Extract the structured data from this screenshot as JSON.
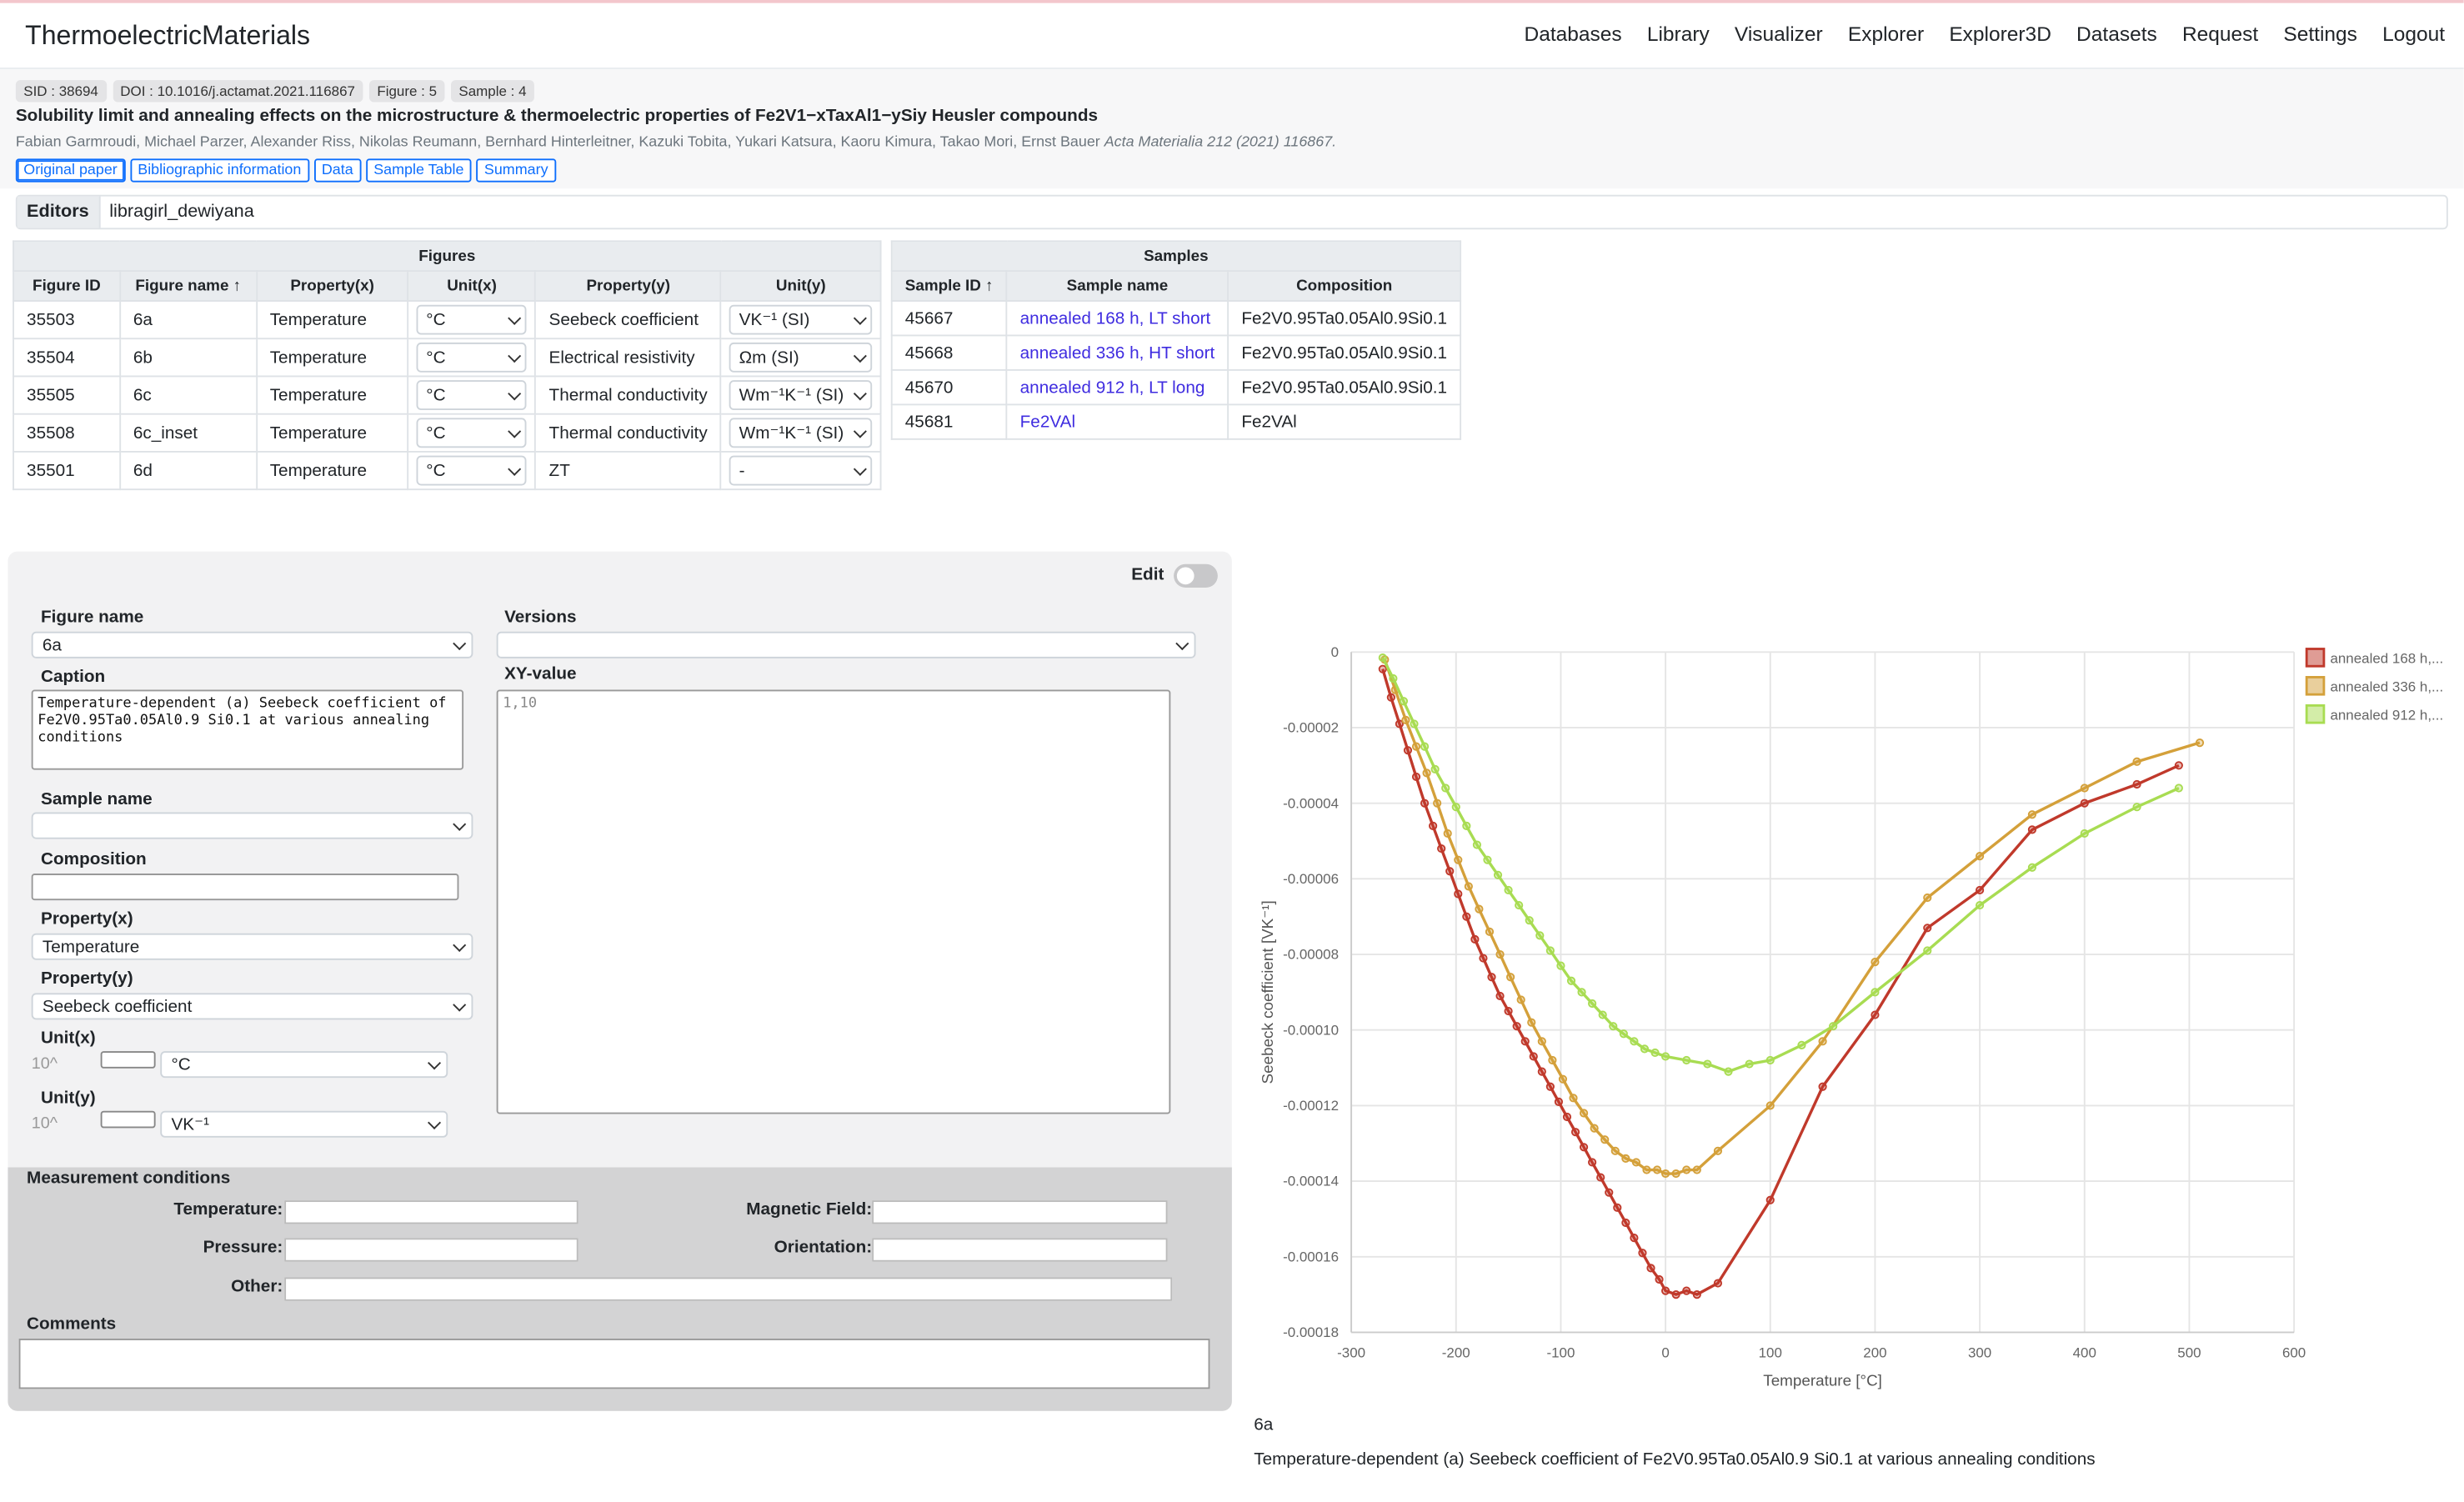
{
  "app": {
    "brand": "ThermoelectricMaterials"
  },
  "nav": [
    "Databases",
    "Library",
    "Visualizer",
    "Explorer",
    "Explorer3D",
    "Datasets",
    "Request",
    "Settings",
    "Logout"
  ],
  "paper": {
    "badges": [
      "SID : 38694",
      "DOI : 10.1016/j.actamat.2021.116867",
      "Figure : 5",
      "Sample : 4"
    ],
    "title": "Solubility limit and annealing effects on the microstructure & thermoelectric properties of Fe2V1−xTaxAl1−ySiy Heusler compounds",
    "authors": "Fabian Garmroudi, Michael Parzer, Alexander Riss, Nikolas Reumann, Bernhard Hinterleitner, Kazuki Tobita, Yukari Katsura, Kaoru Kimura, Takao Mori, Ernst Bauer",
    "journal": "Acta Materialia 212  (2021)  116867.",
    "tabs": [
      "Original paper",
      "Bibliographic information",
      "Data",
      "Sample Table",
      "Summary"
    ]
  },
  "editors": {
    "label": "Editors",
    "value": "libragirl_dewiyana"
  },
  "figures_table": {
    "title": "Figures",
    "headers": [
      "Figure ID",
      "Figure name ↑",
      "Property(x)",
      "Unit(x)",
      "Property(y)",
      "Unit(y)"
    ],
    "rows": [
      [
        "35503",
        "6a",
        "Temperature",
        "°C",
        "Seebeck coefficient",
        "VK⁻¹ (SI)"
      ],
      [
        "35504",
        "6b",
        "Temperature",
        "°C",
        "Electrical resistivity",
        "Ωm (SI)"
      ],
      [
        "35505",
        "6c",
        "Temperature",
        "°C",
        "Thermal conductivity",
        "Wm⁻¹K⁻¹ (SI)"
      ],
      [
        "35508",
        "6c_inset",
        "Temperature",
        "°C",
        "Thermal conductivity",
        "Wm⁻¹K⁻¹ (SI)"
      ],
      [
        "35501",
        "6d",
        "Temperature",
        "°C",
        "ZT",
        "-"
      ]
    ]
  },
  "samples_table": {
    "title": "Samples",
    "headers": [
      "Sample ID ↑",
      "Sample name",
      "Composition"
    ],
    "rows": [
      [
        "45667",
        "annealed 168 h, LT short",
        "Fe2V0.95Ta0.05Al0.9Si0.1"
      ],
      [
        "45668",
        "annealed 336 h, HT short",
        "Fe2V0.95Ta0.05Al0.9Si0.1"
      ],
      [
        "45670",
        "annealed 912 h, LT long",
        "Fe2V0.95Ta0.05Al0.9Si0.1"
      ],
      [
        "45681",
        "Fe2VAl",
        "Fe2VAl"
      ]
    ]
  },
  "editor": {
    "edit_label": "Edit",
    "figure_name_label": "Figure name",
    "figure_name_value": "6a",
    "versions_label": "Versions",
    "versions_value": "",
    "caption_label": "Caption",
    "caption_value": "Temperature-dependent (a) Seebeck coefficient of Fe2V0.95Ta0.05Al0.9 Si0.1 at various annealing conditions",
    "xy_label": "XY-value",
    "xy_placeholder": "1,10",
    "sample_name_label": "Sample name",
    "sample_name_value": "",
    "composition_label": "Composition",
    "property_x_label": "Property(x)",
    "property_x_value": "Temperature",
    "property_y_label": "Property(y)",
    "property_y_value": "Seebeck coefficient",
    "unit_x_label": "Unit(x)",
    "unit_x_value": "°C",
    "unit_y_label": "Unit(y)",
    "unit_y_value": "VK⁻¹",
    "pow_label": "10^"
  },
  "measurement": {
    "title": "Measurement conditions",
    "temperature": "Temperature:",
    "magnetic_field": "Magnetic Field:",
    "pressure": "Pressure:",
    "orientation": "Orientation:",
    "other": "Other:",
    "comments": "Comments"
  },
  "figure_caption": {
    "name": "6a",
    "text": "Temperature-dependent (a) Seebeck coefficient of Fe2V0.95Ta0.05Al0.9 Si0.1 at various annealing conditions"
  },
  "chart_data": {
    "type": "line",
    "xlabel": "Temperature [°C]",
    "ylabel": "Seebeck coefficient [VK⁻¹]",
    "xlim": [
      -300,
      600
    ],
    "ylim": [
      -0.00018,
      0
    ],
    "xticks": [
      "-300",
      "-200",
      "-100",
      "0",
      "100",
      "200",
      "300",
      "400",
      "500",
      "600"
    ],
    "yticks": [
      "0",
      "-0.00002",
      "-0.00004",
      "-0.00006",
      "-0.00008",
      "-0.00010",
      "-0.00012",
      "-0.00014",
      "-0.00016",
      "-0.00018"
    ],
    "grid": true,
    "legend_position": "right",
    "series": [
      {
        "name": "annealed 168 h,...",
        "color": "#c0392b",
        "x": [
          -270,
          -262,
          -254,
          -246,
          -238,
          -230,
          -222,
          -214,
          -206,
          -198,
          -190,
          -182,
          -174,
          -166,
          -158,
          -150,
          -142,
          -134,
          -126,
          -118,
          -110,
          -102,
          -94,
          -86,
          -78,
          -70,
          -62,
          -54,
          -46,
          -38,
          -30,
          -22,
          -14,
          -6,
          0,
          10,
          20,
          30,
          50,
          100,
          150,
          200,
          250,
          300,
          350,
          400,
          450,
          490
        ],
        "y": [
          -4.5e-06,
          -1.2e-05,
          -1.9e-05,
          -2.6e-05,
          -3.3e-05,
          -4e-05,
          -4.6e-05,
          -5.2e-05,
          -5.8e-05,
          -6.4e-05,
          -7e-05,
          -7.6e-05,
          -8.1e-05,
          -8.6e-05,
          -9.1e-05,
          -9.5e-05,
          -9.9e-05,
          -0.000103,
          -0.000107,
          -0.000111,
          -0.000115,
          -0.000119,
          -0.000123,
          -0.000127,
          -0.000131,
          -0.000135,
          -0.000139,
          -0.000143,
          -0.000147,
          -0.000151,
          -0.000155,
          -0.000159,
          -0.000163,
          -0.000166,
          -0.000169,
          -0.00017,
          -0.000169,
          -0.00017,
          -0.000167,
          -0.000145,
          -0.000115,
          -9.6e-05,
          -7.3e-05,
          -6.3e-05,
          -4.7e-05,
          -4e-05,
          -3.5e-05,
          -3e-05
        ]
      },
      {
        "name": "annealed 336 h,...",
        "color": "#d4a03a",
        "x": [
          -268,
          -258,
          -248,
          -238,
          -228,
          -218,
          -208,
          -198,
          -188,
          -178,
          -168,
          -158,
          -148,
          -138,
          -128,
          -118,
          -108,
          -98,
          -88,
          -78,
          -68,
          -58,
          -48,
          -38,
          -28,
          -18,
          -8,
          0,
          10,
          20,
          30,
          50,
          100,
          150,
          200,
          250,
          300,
          350,
          400,
          450,
          510
        ],
        "y": [
          -2e-06,
          -1e-05,
          -1.8e-05,
          -2.5e-05,
          -3.2e-05,
          -4e-05,
          -4.8e-05,
          -5.5e-05,
          -6.2e-05,
          -6.8e-05,
          -7.4e-05,
          -8e-05,
          -8.6e-05,
          -9.2e-05,
          -9.8e-05,
          -0.000103,
          -0.000108,
          -0.000113,
          -0.000118,
          -0.000122,
          -0.000126,
          -0.000129,
          -0.000132,
          -0.000134,
          -0.000135,
          -0.000137,
          -0.000137,
          -0.000138,
          -0.000138,
          -0.000137,
          -0.000137,
          -0.000132,
          -0.00012,
          -0.000103,
          -8.2e-05,
          -6.5e-05,
          -5.4e-05,
          -4.3e-05,
          -3.6e-05,
          -2.9e-05,
          -2.4e-05
        ]
      },
      {
        "name": "annealed 912 h,...",
        "color": "#a8dc52",
        "x": [
          -270,
          -260,
          -250,
          -240,
          -230,
          -220,
          -210,
          -200,
          -190,
          -180,
          -170,
          -160,
          -150,
          -140,
          -130,
          -120,
          -110,
          -100,
          -90,
          -80,
          -70,
          -60,
          -50,
          -40,
          -30,
          -20,
          -10,
          0,
          20,
          40,
          60,
          80,
          100,
          130,
          160,
          200,
          250,
          300,
          350,
          400,
          450,
          490
        ],
        "y": [
          -1.5e-06,
          -7e-06,
          -1.3e-05,
          -1.9e-05,
          -2.5e-05,
          -3.1e-05,
          -3.6e-05,
          -4.1e-05,
          -4.6e-05,
          -5.1e-05,
          -5.5e-05,
          -5.9e-05,
          -6.3e-05,
          -6.7e-05,
          -7.1e-05,
          -7.5e-05,
          -7.9e-05,
          -8.3e-05,
          -8.7e-05,
          -9e-05,
          -9.3e-05,
          -9.6e-05,
          -9.9e-05,
          -0.000101,
          -0.000103,
          -0.000105,
          -0.000106,
          -0.000107,
          -0.000108,
          -0.000109,
          -0.000111,
          -0.000109,
          -0.000108,
          -0.000104,
          -9.9e-05,
          -9e-05,
          -7.9e-05,
          -6.7e-05,
          -5.7e-05,
          -4.8e-05,
          -4.1e-05,
          -3.6e-05
        ]
      }
    ]
  }
}
